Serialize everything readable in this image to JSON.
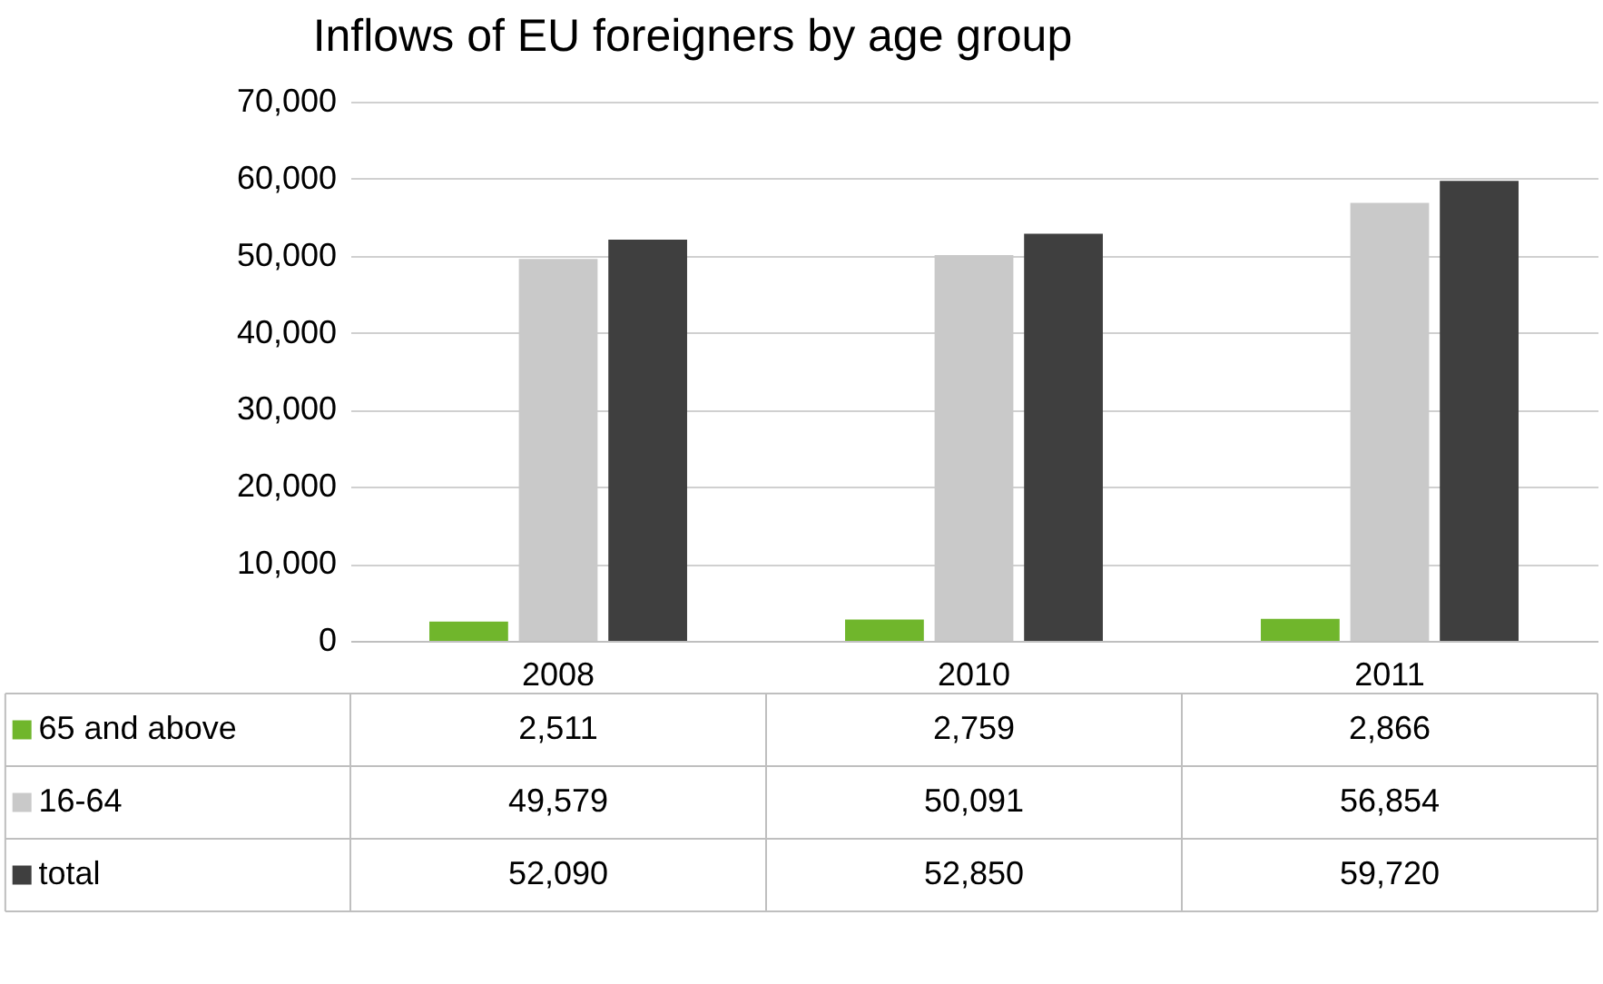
{
  "chart_data": {
    "type": "bar",
    "title": "Inflows of EU foreigners by age group",
    "categories": [
      "2008",
      "2010",
      "2011"
    ],
    "series": [
      {
        "name": "65 and above",
        "color": "#70b62c",
        "values": [
          2511,
          2759,
          2866
        ],
        "value_labels": [
          "2,511",
          "2,759",
          "2,866"
        ]
      },
      {
        "name": "16-64",
        "color": "#c9c9c9",
        "values": [
          49579,
          50091,
          56854
        ],
        "value_labels": [
          "49,579",
          "50,091",
          "56,854"
        ]
      },
      {
        "name": "total",
        "color": "#3f3f3f",
        "values": [
          52090,
          52850,
          59720
        ],
        "value_labels": [
          "52,090",
          "52,850",
          "59,720"
        ]
      }
    ],
    "ylim": [
      0,
      70000
    ],
    "yticks": [
      {
        "value": 0,
        "label": "0"
      },
      {
        "value": 10000,
        "label": "10,000"
      },
      {
        "value": 20000,
        "label": "20,000"
      },
      {
        "value": 30000,
        "label": "30,000"
      },
      {
        "value": 40000,
        "label": "40,000"
      },
      {
        "value": 50000,
        "label": "50,000"
      },
      {
        "value": 60000,
        "label": "60,000"
      },
      {
        "value": 70000,
        "label": "70,000"
      }
    ],
    "grid": "y",
    "legend": "bottom left"
  }
}
